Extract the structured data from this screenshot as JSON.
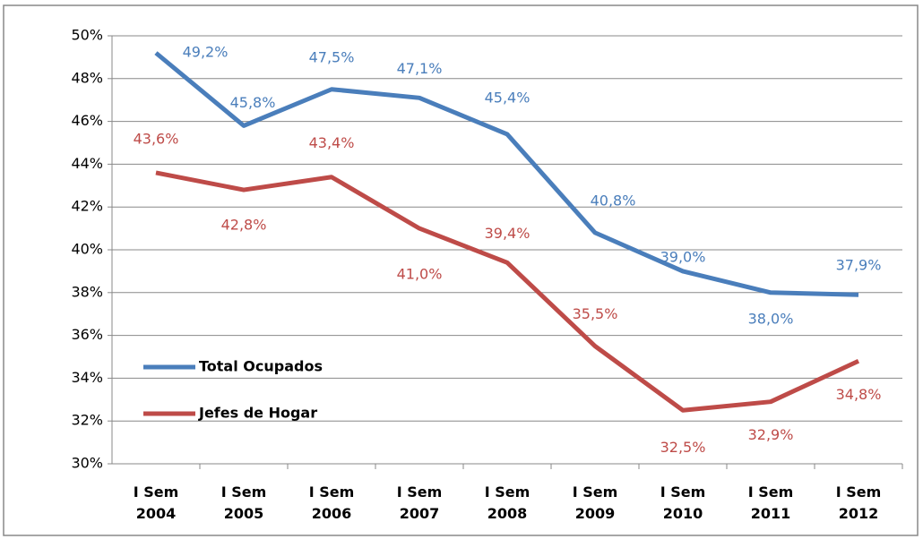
{
  "chart_data": {
    "type": "line",
    "categories": [
      "I Sem 2004",
      "I Sem 2005",
      "I Sem 2006",
      "I Sem 2007",
      "I Sem 2008",
      "I Sem 2009",
      "I Sem 2010",
      "I Sem 2011",
      "I Sem 2012"
    ],
    "series": [
      {
        "name": "Total Ocupados",
        "color": "#4a7ebb",
        "values": [
          49.2,
          45.8,
          47.5,
          47.1,
          45.4,
          40.8,
          39.0,
          38.0,
          37.9
        ],
        "value_labels": [
          "49,2%",
          "45,8%",
          "47,5%",
          "47,1%",
          "45,4%",
          "40,8%",
          "39,0%",
          "38,0%",
          "37,9%"
        ]
      },
      {
        "name": "Jefes de Hogar",
        "color": "#be4b48",
        "values": [
          43.6,
          42.8,
          43.4,
          41.0,
          39.4,
          35.5,
          32.5,
          32.9,
          34.8
        ],
        "value_labels": [
          "43,6%",
          "42,8%",
          "43,4%",
          "41,0%",
          "39,4%",
          "35,5%",
          "32,5%",
          "32,9%",
          "34,8%"
        ]
      }
    ],
    "ylim": [
      30,
      50
    ],
    "yticks": [
      {
        "value": 30,
        "label": "30%"
      },
      {
        "value": 32,
        "label": "32%"
      },
      {
        "value": 34,
        "label": "34%"
      },
      {
        "value": 36,
        "label": "36%"
      },
      {
        "value": 38,
        "label": "38%"
      },
      {
        "value": 40,
        "label": "40%"
      },
      {
        "value": 42,
        "label": "42%"
      },
      {
        "value": 44,
        "label": "44%"
      },
      {
        "value": 46,
        "label": "46%"
      },
      {
        "value": 48,
        "label": "48%"
      },
      {
        "value": 50,
        "label": "50%"
      }
    ],
    "grid": true,
    "legend": "left"
  }
}
